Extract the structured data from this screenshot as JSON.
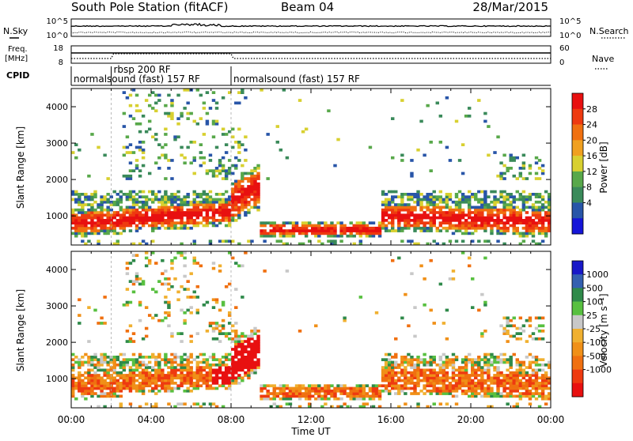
{
  "header": {
    "station": "South Pole Station (fitACF)",
    "beam": "Beam 04",
    "date": "28/Mar/2015"
  },
  "left_labels": {
    "nsky": "N.Sky",
    "freq": "Freq.",
    "mhz": "[MHz]",
    "cpid": "CPID"
  },
  "right_labels": {
    "nsearch": "N.Search",
    "nave": "Nave"
  },
  "noise_panel": {
    "left_ticks": [
      "10^5",
      "10^0"
    ],
    "right_ticks": [
      "10^5",
      "10^0"
    ]
  },
  "freq_panel": {
    "left_ticks": [
      "18",
      "8"
    ],
    "right_ticks": [
      "60",
      "0"
    ]
  },
  "cpid": [
    {
      "label": "normalsound (fast) 157 RF",
      "start_hour": 0
    },
    {
      "label": "rbsp 200 RF",
      "start_hour": 2
    },
    {
      "label": "normalsound (fast) 157 RF",
      "start_hour": 8
    }
  ],
  "colors": {
    "power": [
      "#1515d8",
      "#2855a8",
      "#3a8a5a",
      "#58a84a",
      "#d8d030",
      "#f0a020",
      "#f07010",
      "#ee3a10",
      "#e81010"
    ],
    "velocity": [
      "#e81010",
      "#ee3a10",
      "#f07010",
      "#f09018",
      "#f0b030",
      "#c8c8c8",
      "#58c040",
      "#2f8a4a",
      "#3460b0",
      "#1818c8"
    ]
  },
  "chart_data": [
    {
      "type": "heatmap",
      "name": "power",
      "ylabel": "Slant Range [km]",
      "yticks": [
        1000,
        2000,
        3000,
        4000
      ],
      "ylim": [
        200,
        4500
      ],
      "xlim": [
        0,
        24
      ],
      "colorbar": {
        "label": "Power [dB]",
        "ticks": [
          "28",
          "24",
          "20",
          "16",
          "12",
          "8",
          "4"
        ],
        "range": [
          0,
          32
        ]
      }
    },
    {
      "type": "heatmap",
      "name": "velocity",
      "ylabel": "Slant Range [km]",
      "yticks": [
        1000,
        2000,
        3000,
        4000
      ],
      "ylim": [
        200,
        4500
      ],
      "xlim": [
        0,
        24
      ],
      "xlabel": "Time UT",
      "xticks": [
        "00:00",
        "04:00",
        "08:00",
        "12:00",
        "16:00",
        "20:00",
        "00:00"
      ],
      "colorbar": {
        "label": "Velocity [m s⁻¹]",
        "ticks": [
          "1000",
          "500",
          "100",
          "25",
          "-25",
          "-100",
          "-500",
          "-1000"
        ]
      }
    }
  ]
}
